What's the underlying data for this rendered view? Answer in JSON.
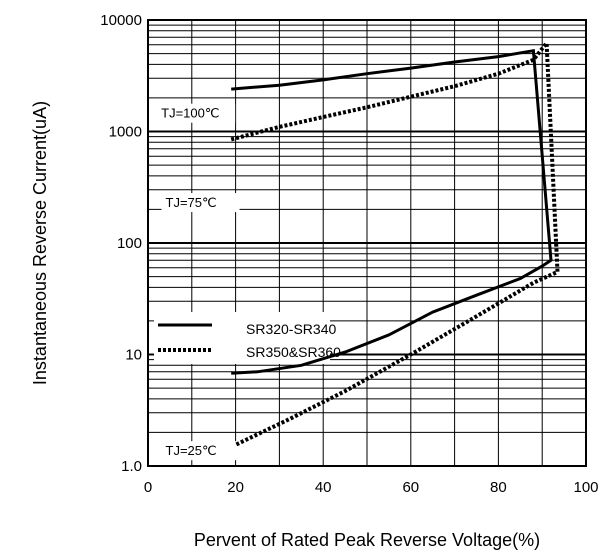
{
  "chart_data": {
    "type": "line",
    "xlabel": "Pervent of Rated Peak Reverse Voltage(%)",
    "ylabel": "Instantaneous Reverse Current(uA)",
    "xlim": [
      0,
      100
    ],
    "ylim": [
      1,
      10000
    ],
    "yscale": "log",
    "grid": true,
    "x_ticks": [
      "0",
      "20",
      "40",
      "60",
      "80",
      "100"
    ],
    "y_ticks": [
      {
        "value": 10000,
        "label": "10000"
      },
      {
        "value": 1000,
        "label": "1000"
      },
      {
        "value": 100,
        "label": "100"
      },
      {
        "value": 10,
        "label": "10"
      },
      {
        "value": 1,
        "label": "1.0"
      }
    ],
    "legend": {
      "position": "lower-left",
      "entries": [
        {
          "label": "SR320-SR340",
          "style": "solid"
        },
        {
          "label": "SR350&SR360",
          "style": "dotted"
        }
      ]
    },
    "annotations": [
      {
        "text": "TJ=100℃",
        "x": 3,
        "y": 1330
      },
      {
        "text": "TJ=75℃",
        "x": 4,
        "y": 210
      },
      {
        "text": "TJ=25℃",
        "x": 4,
        "y": 1.25
      }
    ],
    "series": [
      {
        "label": "SR320-SR340",
        "style": "solid",
        "x": [
          19,
          30,
          40,
          50,
          60,
          70,
          80,
          88,
          92,
          90,
          85,
          75,
          65,
          55,
          45,
          35,
          25,
          19
        ],
        "y": [
          2400,
          2600,
          2900,
          3300,
          3700,
          4200,
          4700,
          5300,
          70,
          62,
          48,
          34,
          24,
          15,
          10.5,
          8,
          7,
          6.8
        ],
        "_note": "continuous outline"
      },
      {
        "label": "SR350&SR360",
        "style": "dotted",
        "x": [
          19,
          30,
          40,
          50,
          60,
          70,
          80,
          88,
          91,
          93.5,
          88,
          75,
          60,
          45,
          32,
          20
        ],
        "y": [
          850,
          1100,
          1350,
          1650,
          2050,
          2550,
          3300,
          4400,
          6200,
          55,
          44,
          22,
          10,
          4.7,
          2.6,
          1.55
        ],
        "_note": "continuous outline"
      }
    ]
  }
}
